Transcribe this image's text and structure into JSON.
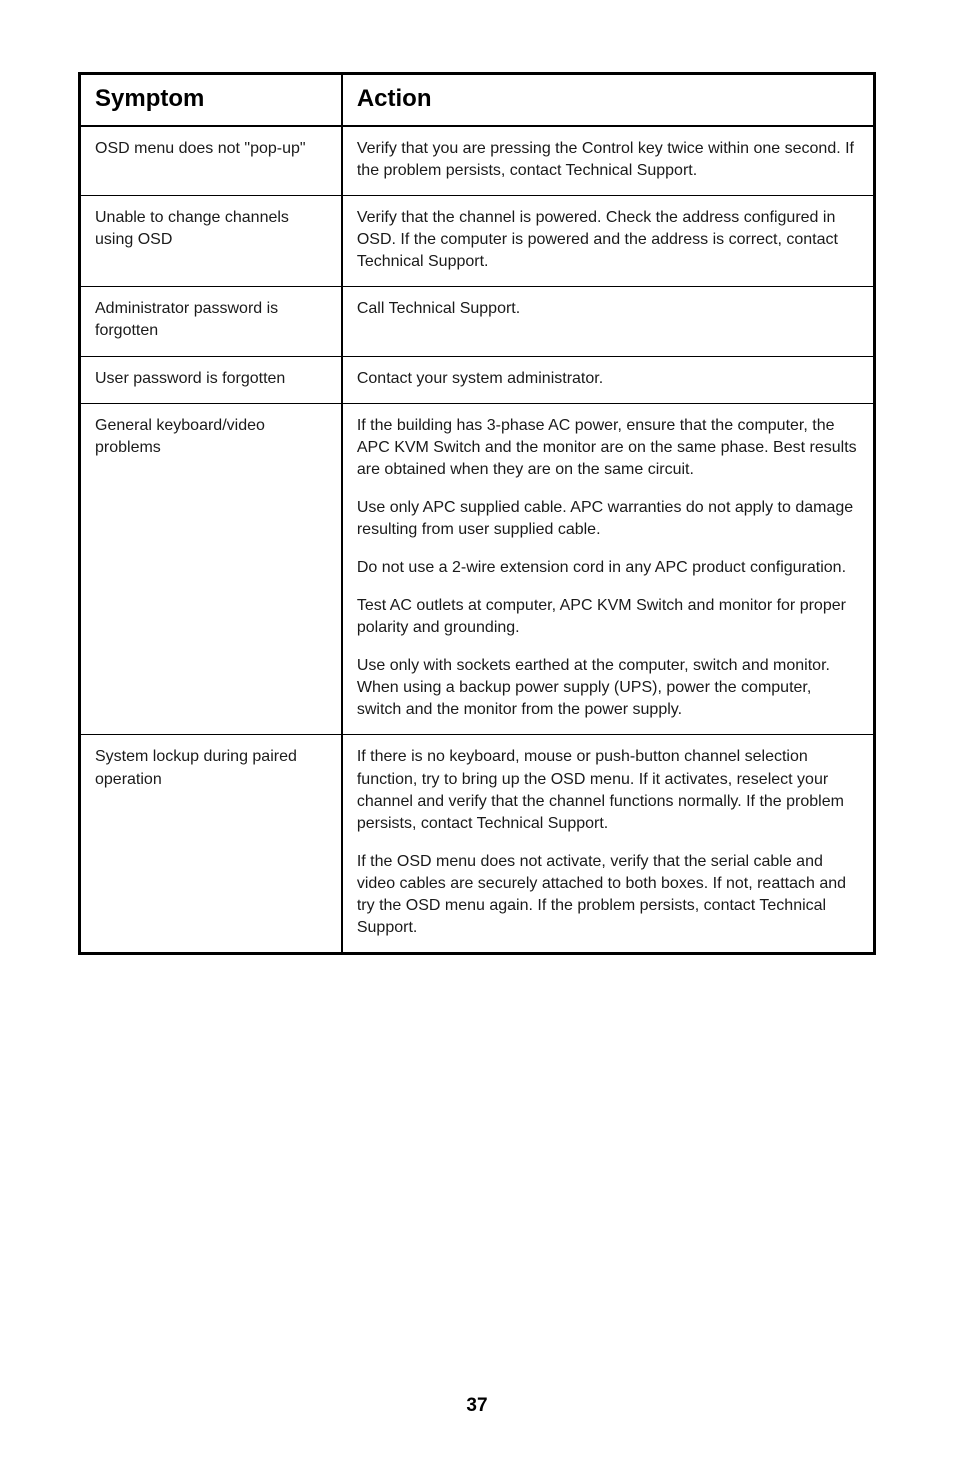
{
  "table": {
    "header": {
      "symptom": "Symptom",
      "action": "Action"
    },
    "rows": [
      {
        "symptom": [
          "OSD menu does not \"pop-up\""
        ],
        "action": [
          "Verify that you are pressing the Control key twice within one second. If the problem persists, contact Technical Support."
        ]
      },
      {
        "symptom": [
          "Unable to change channels using OSD"
        ],
        "action": [
          "Verify that the channel is powered. Check the address configured in OSD. If the computer is powered and the address is correct, contact Technical Support."
        ]
      },
      {
        "symptom": [
          "Administrator password is forgotten"
        ],
        "action": [
          "Call Technical Support."
        ]
      },
      {
        "symptom": [
          "User password is forgotten"
        ],
        "action": [
          "Contact your system administrator."
        ]
      },
      {
        "symptom": [
          "General keyboard/video problems"
        ],
        "action": [
          "If the building has 3-phase AC power, ensure that the computer, the APC KVM Switch and the monitor are on the same phase. Best results are obtained when they are on the same circuit.",
          "Use only APC supplied cable. APC warranties do not apply to damage resulting from user supplied cable.",
          "Do not use a 2-wire extension cord in any APC product configuration.",
          "Test AC outlets at computer, APC KVM Switch and monitor for proper polarity and grounding.",
          "Use only with sockets earthed at the computer, switch and monitor. When using a backup power supply (UPS), power the computer, switch and the monitor from the power supply."
        ]
      },
      {
        "symptom": [
          "System lockup during paired operation"
        ],
        "action": [
          "If there is no keyboard, mouse or push-button channel selection function, try to bring up the OSD menu. If it activates, reselect your channel and verify that the channel functions normally. If the problem persists, contact Technical Support.",
          "If the OSD menu does not activate, verify that the serial cable and video cables are securely attached to both boxes. If not, reattach and try the OSD menu again. If the problem persists, contact Technical Support."
        ]
      }
    ]
  },
  "page_number": "37",
  "style": {
    "body_bg": "#ffffff",
    "text_color": "#000000",
    "outer_border_width": 3,
    "inner_border_width": 1,
    "header_font_size": 24,
    "body_font_size": 16
  }
}
